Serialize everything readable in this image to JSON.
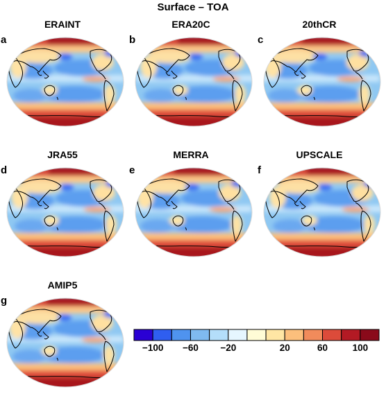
{
  "figure_title": "Surface – TOA",
  "panels": [
    {
      "label": "a",
      "title": "ERAINT"
    },
    {
      "label": "b",
      "title": "ERA20C"
    },
    {
      "label": "c",
      "title": "20thCR"
    },
    {
      "label": "d",
      "title": "JRA55"
    },
    {
      "label": "e",
      "title": "MERRA"
    },
    {
      "label": "f",
      "title": "UPSCALE"
    },
    {
      "label": "g",
      "title": "AMIP5"
    }
  ],
  "colorbar": {
    "colors": [
      "#2a00d4",
      "#2f5ef0",
      "#4f93ef",
      "#7fbaf0",
      "#b4defa",
      "#e6f6ff",
      "#fffcd6",
      "#ffe6a4",
      "#fcbf7c",
      "#f18b5b",
      "#dc4b3a",
      "#b31a24",
      "#8a0a1a"
    ],
    "ticks": [
      "−100",
      "−60",
      "−20",
      "20",
      "60",
      "100"
    ]
  }
}
